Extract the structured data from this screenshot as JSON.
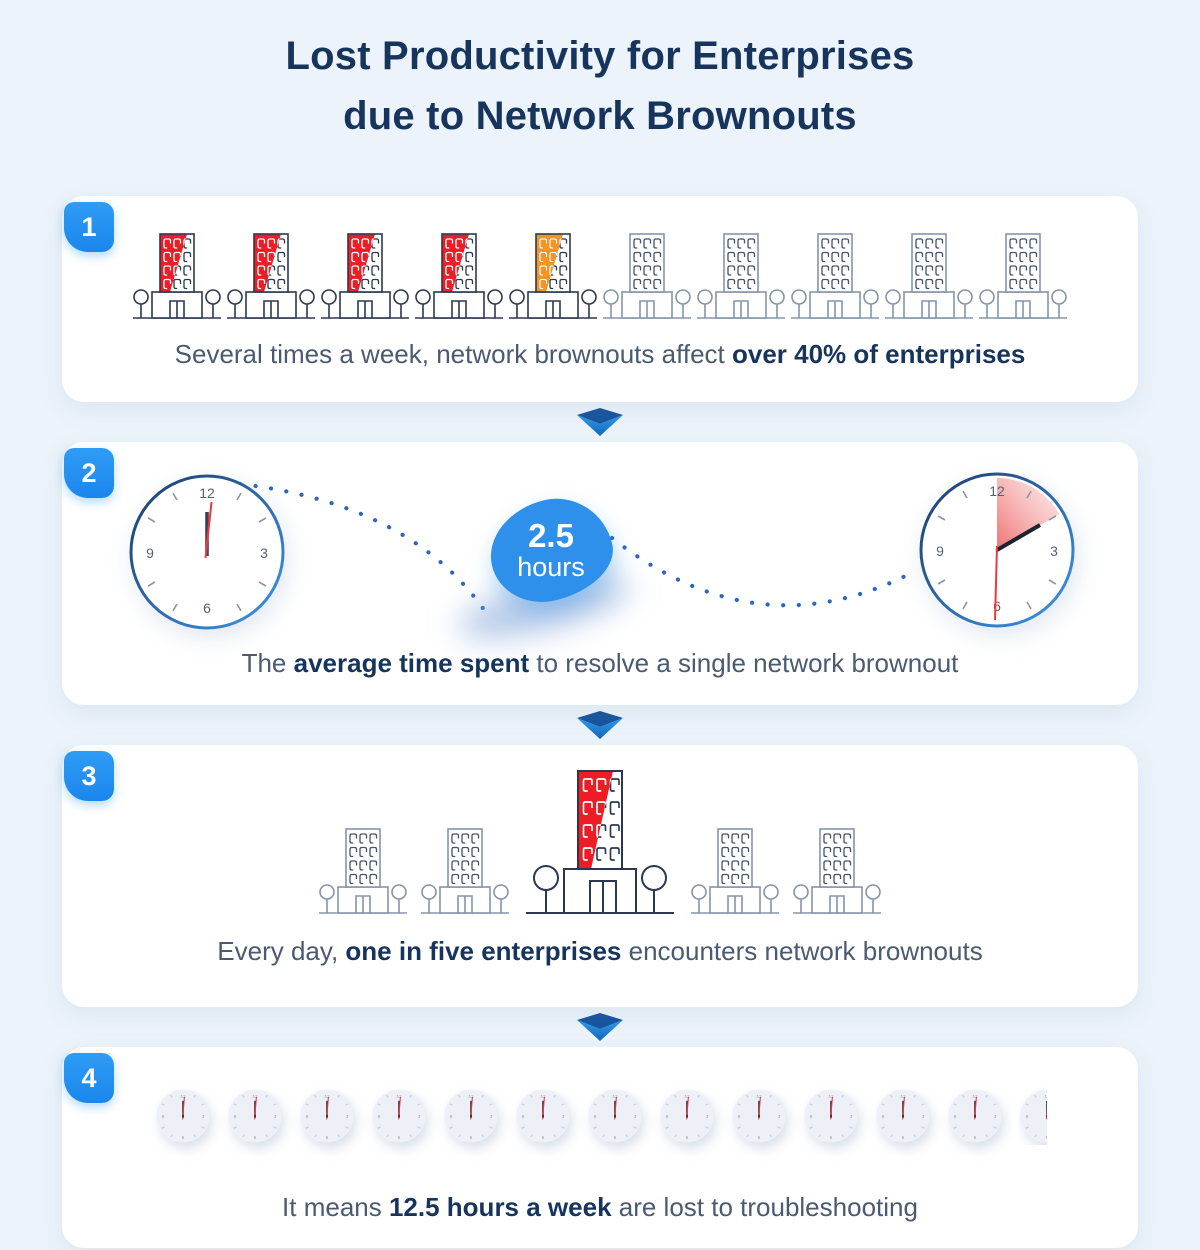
{
  "title": {
    "line1": "Lost Productivity for Enterprises",
    "line2": "due to Network Brownouts"
  },
  "colors": {
    "background": "#ecf3fa",
    "card": "#ffffff",
    "badge_blue": "#2196f3",
    "navy_text": "#17355c",
    "caption_text": "#4a5a70",
    "red": "#ee1c25",
    "orange": "#f6941e",
    "outline_navy": "#2b3950",
    "outline_muted": "#8495ab",
    "windows_muted": "#44536d",
    "dots_blue": "#2f66bd",
    "bubble_blue": "#2e90ea",
    "red_hand": "#f2383f",
    "mini_face": "#edf1f7"
  },
  "clock_numbers": [
    "12",
    "3",
    "6",
    "9"
  ],
  "sections": [
    {
      "number": "1",
      "caption": {
        "prefix": "Several times a week, network brownouts affect ",
        "bold": "over 40% of enterprises",
        "suffix": ""
      },
      "buildings": [
        "red",
        "red",
        "red",
        "red",
        "orange",
        "plain",
        "plain",
        "plain",
        "plain",
        "plain"
      ]
    },
    {
      "number": "2",
      "caption": {
        "prefix": "The ",
        "bold": "average time spent",
        "suffix": " to resolve a single network brownout"
      },
      "bubble": {
        "value": "2.5",
        "unit": "hours"
      }
    },
    {
      "number": "3",
      "caption": {
        "prefix": "Every day, ",
        "bold": "one in five enterprises",
        "suffix": " encounters network brownouts"
      },
      "buildings": [
        "plain",
        "plain",
        "red-large",
        "plain",
        "plain"
      ]
    },
    {
      "number": "4",
      "caption": {
        "prefix": "It means ",
        "bold": "12.5 hours a week",
        "suffix": " are lost to troubleshooting"
      },
      "full_clocks": 12,
      "half_clocks": 1
    }
  ]
}
